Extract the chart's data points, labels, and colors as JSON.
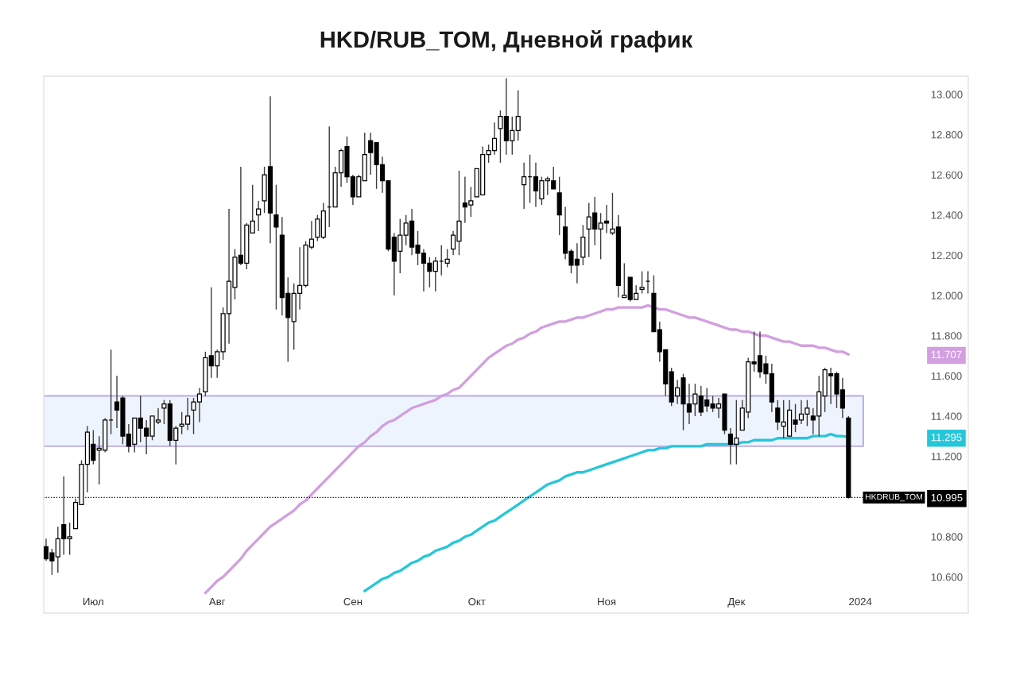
{
  "chart_data": {
    "type": "candlestick",
    "title": "HKD/RUB_TOM, Дневной график",
    "categories": [
      null,
      null,
      null,
      null,
      null,
      null,
      null,
      null,
      "Июл",
      null,
      null,
      null,
      null,
      null,
      null,
      null,
      null,
      null,
      null,
      null,
      null,
      null,
      null,
      null,
      null,
      null,
      null,
      null,
      null,
      "Авг",
      null,
      null,
      null,
      null,
      null,
      null,
      null,
      null,
      null,
      null,
      null,
      null,
      null,
      null,
      null,
      null,
      null,
      null,
      null,
      null,
      null,
      null,
      "Сен",
      null,
      null,
      null,
      null,
      null,
      null,
      null,
      null,
      null,
      null,
      null,
      null,
      null,
      null,
      null,
      null,
      null,
      null,
      null,
      null,
      "Окт",
      null,
      null,
      null,
      null,
      null,
      null,
      null,
      null,
      null,
      null,
      null,
      null,
      null,
      null,
      null,
      null,
      null,
      null,
      null,
      null,
      null,
      "Ноя",
      null,
      null,
      null,
      null,
      null,
      null,
      null,
      null,
      null,
      null,
      null,
      null,
      null,
      null,
      null,
      null,
      null,
      null,
      null,
      null,
      null,
      "Дек",
      null,
      null,
      null,
      null,
      null,
      null,
      null,
      null,
      null,
      null,
      null,
      null,
      null,
      null,
      null,
      null,
      null,
      null,
      null,
      null,
      "2024"
    ],
    "ohlc": [
      [
        10.75,
        10.79,
        10.68,
        10.69
      ],
      [
        10.72,
        10.74,
        10.61,
        10.68
      ],
      [
        10.7,
        10.85,
        10.62,
        10.79
      ],
      [
        10.86,
        11.1,
        10.71,
        10.79
      ],
      [
        10.79,
        10.87,
        10.71,
        10.8
      ],
      [
        10.84,
        10.99,
        10.84,
        10.97
      ],
      [
        10.96,
        11.18,
        10.96,
        11.16
      ],
      [
        11.16,
        11.35,
        11.02,
        11.32
      ],
      [
        11.26,
        11.33,
        11.16,
        11.18
      ],
      [
        11.23,
        11.3,
        11.06,
        11.24
      ],
      [
        11.23,
        11.39,
        11.22,
        11.38
      ],
      [
        11.38,
        11.73,
        11.31,
        11.38
      ],
      [
        11.47,
        11.6,
        11.34,
        11.43
      ],
      [
        11.49,
        11.5,
        11.26,
        11.3
      ],
      [
        11.31,
        11.36,
        11.22,
        11.25
      ],
      [
        11.26,
        11.39,
        11.22,
        11.39
      ],
      [
        11.39,
        11.5,
        11.27,
        11.34
      ],
      [
        11.34,
        11.38,
        11.21,
        11.3
      ],
      [
        11.3,
        11.4,
        11.28,
        11.4
      ],
      [
        11.37,
        11.44,
        11.36,
        11.38
      ],
      [
        11.44,
        11.48,
        11.36,
        11.46
      ],
      [
        11.46,
        11.48,
        11.25,
        11.28
      ],
      [
        11.28,
        11.35,
        11.16,
        11.34
      ],
      [
        11.35,
        11.42,
        11.31,
        11.36
      ],
      [
        11.36,
        11.49,
        11.33,
        11.4
      ],
      [
        11.43,
        11.49,
        11.31,
        11.47
      ],
      [
        11.47,
        11.54,
        11.37,
        11.51
      ],
      [
        11.52,
        11.72,
        11.5,
        11.69
      ],
      [
        11.7,
        12.04,
        11.59,
        11.65
      ],
      [
        11.65,
        11.73,
        11.59,
        11.72
      ],
      [
        11.72,
        11.94,
        11.68,
        11.91
      ],
      [
        11.91,
        12.43,
        11.76,
        12.07
      ],
      [
        12.04,
        12.23,
        11.98,
        12.19
      ],
      [
        12.2,
        12.64,
        12.15,
        12.16
      ],
      [
        12.16,
        12.36,
        12.13,
        12.35
      ],
      [
        12.31,
        12.55,
        12.31,
        12.37
      ],
      [
        12.4,
        12.47,
        12.32,
        12.43
      ],
      [
        12.47,
        12.64,
        12.41,
        12.6
      ],
      [
        12.64,
        12.99,
        12.26,
        12.41
      ],
      [
        12.4,
        12.55,
        11.93,
        12.34
      ],
      [
        12.3,
        12.39,
        11.9,
        11.99
      ],
      [
        12.01,
        12.09,
        11.67,
        11.89
      ],
      [
        11.87,
        12.06,
        11.73,
        12.01
      ],
      [
        12.01,
        12.24,
        11.93,
        12.05
      ],
      [
        12.05,
        12.27,
        12.04,
        12.25
      ],
      [
        12.24,
        12.37,
        12.23,
        12.28
      ],
      [
        12.29,
        12.4,
        12.27,
        12.38
      ],
      [
        12.29,
        12.46,
        12.28,
        12.42
      ],
      [
        12.44,
        12.84,
        12.34,
        12.44
      ],
      [
        12.44,
        12.64,
        12.44,
        12.61
      ],
      [
        12.61,
        12.73,
        12.54,
        12.72
      ],
      [
        12.74,
        12.79,
        12.56,
        12.59
      ],
      [
        12.59,
        12.6,
        12.45,
        12.49
      ],
      [
        12.49,
        12.6,
        12.49,
        12.59
      ],
      [
        12.57,
        12.81,
        12.57,
        12.7
      ],
      [
        12.77,
        12.81,
        12.6,
        12.71
      ],
      [
        12.76,
        12.76,
        12.53,
        12.65
      ],
      [
        12.65,
        12.69,
        12.51,
        12.57
      ],
      [
        12.57,
        12.57,
        12.22,
        12.23
      ],
      [
        12.29,
        12.31,
        12.0,
        12.17
      ],
      [
        12.22,
        12.38,
        12.11,
        12.3
      ],
      [
        12.3,
        12.4,
        12.25,
        12.36
      ],
      [
        12.37,
        12.43,
        12.2,
        12.24
      ],
      [
        12.25,
        12.32,
        12.15,
        12.21
      ],
      [
        12.21,
        12.23,
        12.02,
        12.16
      ],
      [
        12.16,
        12.19,
        12.04,
        12.12
      ],
      [
        12.12,
        12.19,
        12.02,
        12.17
      ],
      [
        12.17,
        12.25,
        12.1,
        12.17
      ],
      [
        12.16,
        12.23,
        12.14,
        12.18
      ],
      [
        12.23,
        12.32,
        12.2,
        12.3
      ],
      [
        12.27,
        12.62,
        12.2,
        12.37
      ],
      [
        12.46,
        12.59,
        12.36,
        12.44
      ],
      [
        12.45,
        12.54,
        12.39,
        12.47
      ],
      [
        12.49,
        12.63,
        12.49,
        12.63
      ],
      [
        12.5,
        12.74,
        12.5,
        12.7
      ],
      [
        12.7,
        12.75,
        12.66,
        12.72
      ],
      [
        12.72,
        12.86,
        12.7,
        12.78
      ],
      [
        12.83,
        12.92,
        12.66,
        12.89
      ],
      [
        12.89,
        13.08,
        12.7,
        12.77
      ],
      [
        12.77,
        12.89,
        12.7,
        12.82
      ],
      [
        12.82,
        13.02,
        12.77,
        12.89
      ],
      [
        12.55,
        12.66,
        12.43,
        12.59
      ],
      [
        12.59,
        12.7,
        12.46,
        12.59
      ],
      [
        12.59,
        12.66,
        12.44,
        12.52
      ],
      [
        12.48,
        12.59,
        12.45,
        12.57
      ],
      [
        12.57,
        12.59,
        12.5,
        12.58
      ],
      [
        12.57,
        12.64,
        12.53,
        12.53
      ],
      [
        12.51,
        12.59,
        12.3,
        12.4
      ],
      [
        12.34,
        12.44,
        12.18,
        12.21
      ],
      [
        12.22,
        12.23,
        12.11,
        12.15
      ],
      [
        12.18,
        12.26,
        12.06,
        12.15
      ],
      [
        12.19,
        12.35,
        12.15,
        12.29
      ],
      [
        12.33,
        12.46,
        12.19,
        12.39
      ],
      [
        12.41,
        12.49,
        12.25,
        12.33
      ],
      [
        12.33,
        12.41,
        12.18,
        12.36
      ],
      [
        12.37,
        12.45,
        12.31,
        12.36
      ],
      [
        12.31,
        12.51,
        12.3,
        12.33
      ],
      [
        12.34,
        12.4,
        11.99,
        12.05
      ],
      [
        11.99,
        12.16,
        11.99,
        12.0
      ],
      [
        12.09,
        12.09,
        11.97,
        11.98
      ],
      [
        11.98,
        12.05,
        11.98,
        12.01
      ],
      [
        12.03,
        12.12,
        12.01,
        12.04
      ],
      [
        12.07,
        12.12,
        12.01,
        12.07
      ],
      [
        12.01,
        12.1,
        11.82,
        11.82
      ],
      [
        11.83,
        11.87,
        11.67,
        11.72
      ],
      [
        11.73,
        11.73,
        11.5,
        11.56
      ],
      [
        11.62,
        11.64,
        11.45,
        11.47
      ],
      [
        11.5,
        11.58,
        11.46,
        11.54
      ],
      [
        11.59,
        11.61,
        11.33,
        11.46
      ],
      [
        11.46,
        11.56,
        11.36,
        11.42
      ],
      [
        11.46,
        11.56,
        11.4,
        11.51
      ],
      [
        11.5,
        11.55,
        11.4,
        11.42
      ],
      [
        11.48,
        11.54,
        11.42,
        11.45
      ],
      [
        11.46,
        11.5,
        11.42,
        11.44
      ],
      [
        11.44,
        11.49,
        11.39,
        11.46
      ],
      [
        11.51,
        11.51,
        11.31,
        11.33
      ],
      [
        11.31,
        11.34,
        11.16,
        11.26
      ],
      [
        11.26,
        11.48,
        11.16,
        11.29
      ],
      [
        11.33,
        11.48,
        11.33,
        11.44
      ],
      [
        11.42,
        11.69,
        11.39,
        11.67
      ],
      [
        11.67,
        11.82,
        11.62,
        11.66
      ],
      [
        11.7,
        11.82,
        11.59,
        11.62
      ],
      [
        11.66,
        11.7,
        11.56,
        11.61
      ],
      [
        11.61,
        11.66,
        11.42,
        11.47
      ],
      [
        11.44,
        11.48,
        11.33,
        11.37
      ],
      [
        11.35,
        11.48,
        11.29,
        11.37
      ],
      [
        11.3,
        11.48,
        11.3,
        11.43
      ],
      [
        11.38,
        11.46,
        11.32,
        11.36
      ],
      [
        11.38,
        11.48,
        11.36,
        11.41
      ],
      [
        11.41,
        11.48,
        11.35,
        11.44
      ],
      [
        11.4,
        11.44,
        11.31,
        11.38
      ],
      [
        11.4,
        11.6,
        11.3,
        11.52
      ],
      [
        11.5,
        11.64,
        11.42,
        11.63
      ],
      [
        11.61,
        11.64,
        11.46,
        11.6
      ],
      [
        11.61,
        11.62,
        11.44,
        11.51
      ],
      [
        11.53,
        11.59,
        11.39,
        11.44
      ],
      [
        11.39,
        11.4,
        10.99,
        10.995
      ],
      null,
      null
    ],
    "series": [
      {
        "type": "line",
        "color": "#d29fe0",
        "values": [
          null,
          null,
          null,
          null,
          null,
          null,
          null,
          null,
          null,
          null,
          null,
          null,
          null,
          null,
          null,
          null,
          null,
          null,
          null,
          null,
          null,
          null,
          null,
          null,
          null,
          null,
          null,
          10.52,
          10.55,
          10.58,
          10.6,
          10.63,
          10.66,
          10.69,
          10.73,
          10.76,
          10.79,
          10.82,
          10.85,
          10.87,
          10.89,
          10.91,
          10.93,
          10.96,
          10.98,
          11.01,
          11.04,
          11.07,
          11.1,
          11.13,
          11.16,
          11.19,
          11.22,
          11.25,
          11.27,
          11.3,
          11.32,
          11.35,
          11.37,
          11.38,
          11.4,
          11.42,
          11.44,
          11.45,
          11.46,
          11.47,
          11.48,
          11.5,
          11.51,
          11.53,
          11.54,
          11.57,
          11.6,
          11.63,
          11.66,
          11.69,
          11.71,
          11.73,
          11.75,
          11.76,
          11.78,
          11.79,
          11.81,
          11.82,
          11.84,
          11.85,
          11.86,
          11.87,
          11.87,
          11.88,
          11.89,
          11.89,
          11.9,
          11.91,
          11.92,
          11.93,
          11.93,
          11.94,
          11.94,
          11.94,
          11.94,
          11.94,
          11.95,
          11.94,
          11.93,
          11.93,
          11.92,
          11.91,
          11.9,
          11.89,
          11.89,
          11.88,
          11.87,
          11.86,
          11.85,
          11.84,
          11.83,
          11.83,
          11.82,
          11.82,
          11.81,
          11.8,
          11.8,
          11.79,
          11.78,
          11.77,
          11.77,
          11.76,
          11.75,
          11.75,
          11.75,
          11.74,
          11.74,
          11.73,
          11.72,
          11.72,
          11.707,
          null,
          null
        ]
      },
      {
        "type": "line",
        "color": "#26c6da",
        "values": [
          null,
          null,
          null,
          null,
          null,
          null,
          null,
          null,
          null,
          null,
          null,
          null,
          null,
          null,
          null,
          null,
          null,
          null,
          null,
          null,
          null,
          null,
          null,
          null,
          null,
          null,
          null,
          null,
          null,
          null,
          null,
          null,
          null,
          null,
          null,
          null,
          null,
          null,
          null,
          null,
          null,
          null,
          null,
          null,
          null,
          null,
          null,
          null,
          null,
          null,
          null,
          null,
          null,
          null,
          10.53,
          10.55,
          10.57,
          10.59,
          10.6,
          10.62,
          10.63,
          10.65,
          10.67,
          10.68,
          10.7,
          10.71,
          10.73,
          10.74,
          10.75,
          10.77,
          10.78,
          10.8,
          10.81,
          10.83,
          10.85,
          10.87,
          10.88,
          10.9,
          10.92,
          10.94,
          10.96,
          10.98,
          11.0,
          11.02,
          11.04,
          11.06,
          11.07,
          11.08,
          11.1,
          11.11,
          11.12,
          11.12,
          11.13,
          11.14,
          11.15,
          11.16,
          11.17,
          11.18,
          11.19,
          11.2,
          11.21,
          11.22,
          11.23,
          11.23,
          11.24,
          11.24,
          11.25,
          11.25,
          11.25,
          11.25,
          11.25,
          11.25,
          11.26,
          11.26,
          11.26,
          11.26,
          11.26,
          11.26,
          11.27,
          11.27,
          11.28,
          11.28,
          11.28,
          11.28,
          11.29,
          11.29,
          11.29,
          11.29,
          11.29,
          11.29,
          11.3,
          11.3,
          11.3,
          11.31,
          11.3,
          11.3,
          11.295,
          null,
          null
        ]
      }
    ],
    "ylim": [
      10.42,
      13.09
    ],
    "yticks": [
      {
        "value": 10.6,
        "label": "10.600"
      },
      {
        "value": 10.8,
        "label": "10.800"
      },
      {
        "value": 10.995,
        "label": "10.995"
      },
      {
        "value": 11.2,
        "label": "11.200"
      },
      {
        "value": 11.295,
        "label": "11.295"
      },
      {
        "value": 11.4,
        "label": "11.400"
      },
      {
        "value": 11.6,
        "label": "11.600"
      },
      {
        "value": 11.707,
        "label": "11.707"
      },
      {
        "value": 11.8,
        "label": "11.800"
      },
      {
        "value": 12.0,
        "label": "12.000"
      },
      {
        "value": 12.2,
        "label": "12.200"
      },
      {
        "value": 12.4,
        "label": "12.400"
      },
      {
        "value": 12.6,
        "label": "12.600"
      },
      {
        "value": 12.8,
        "label": "12.800"
      },
      {
        "value": 13.0,
        "label": "13.000"
      }
    ],
    "bands": [
      {
        "axis": "y",
        "from": 11.25,
        "to": 11.5,
        "color": "#eef4fd"
      }
    ],
    "ref_lines": [
      {
        "axis": "y",
        "value": 10.995,
        "label": "HKDRUB_TOM",
        "color": "#000000",
        "line_style": "dotted"
      }
    ]
  }
}
